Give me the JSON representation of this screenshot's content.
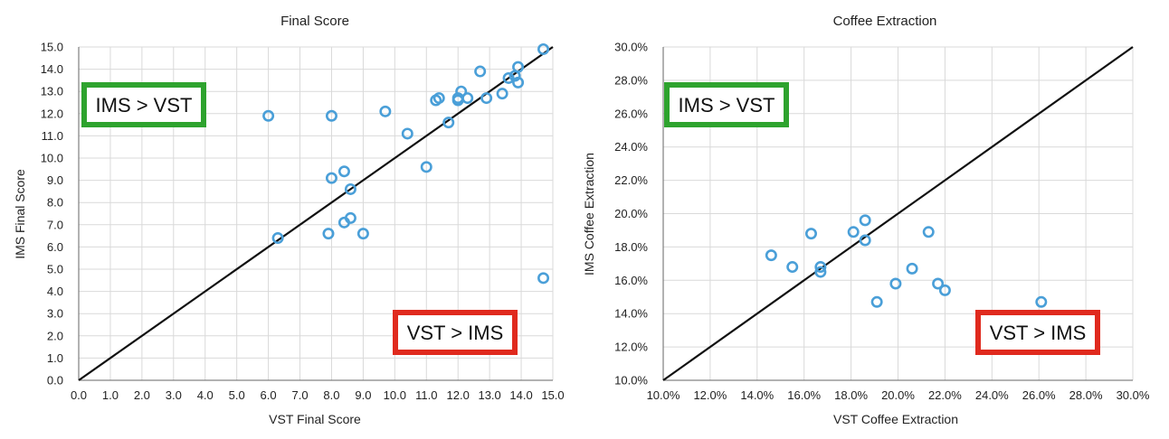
{
  "chart_data": [
    {
      "type": "scatter",
      "title": "Final Score",
      "xlabel": "VST Final Score",
      "ylabel": "IMS Final Score",
      "xlim": [
        0,
        15
      ],
      "ylim": [
        0,
        15
      ],
      "xticks": [
        "0.0",
        "1.0",
        "2.0",
        "3.0",
        "4.0",
        "5.0",
        "6.0",
        "7.0",
        "8.0",
        "9.0",
        "10.0",
        "11.0",
        "12.0",
        "13.0",
        "14.0",
        "15.0"
      ],
      "yticks": [
        "0.0",
        "1.0",
        "2.0",
        "3.0",
        "4.0",
        "5.0",
        "6.0",
        "7.0",
        "8.0",
        "9.0",
        "10.0",
        "11.0",
        "12.0",
        "13.0",
        "14.0",
        "15.0"
      ],
      "grid": true,
      "marker_color": "#4a9fd8",
      "line_color": "#111111",
      "reference_line": [
        [
          0,
          0
        ],
        [
          15,
          15
        ]
      ],
      "series": [
        {
          "points": [
            [
              6.0,
              11.9
            ],
            [
              6.3,
              6.4
            ],
            [
              7.9,
              6.6
            ],
            [
              8.0,
              11.9
            ],
            [
              8.0,
              9.1
            ],
            [
              8.4,
              9.4
            ],
            [
              8.6,
              8.6
            ],
            [
              8.4,
              7.1
            ],
            [
              8.6,
              7.3
            ],
            [
              9.0,
              6.6
            ],
            [
              9.7,
              12.1
            ],
            [
              10.4,
              11.1
            ],
            [
              11.0,
              9.6
            ],
            [
              11.3,
              12.6
            ],
            [
              11.4,
              12.7
            ],
            [
              11.7,
              11.6
            ],
            [
              12.0,
              12.6
            ],
            [
              12.1,
              13.0
            ],
            [
              12.0,
              12.7
            ],
            [
              12.3,
              12.7
            ],
            [
              12.7,
              13.9
            ],
            [
              12.9,
              12.7
            ],
            [
              13.4,
              12.9
            ],
            [
              13.6,
              13.6
            ],
            [
              13.8,
              13.7
            ],
            [
              13.9,
              14.1
            ],
            [
              13.9,
              13.4
            ],
            [
              14.7,
              14.9
            ],
            [
              14.7,
              4.6
            ]
          ]
        }
      ],
      "annotations": {
        "upper": {
          "text": "IMS > VST",
          "color": "#2ea32e"
        },
        "lower": {
          "text": "VST > IMS",
          "color": "#e02a1e"
        }
      }
    },
    {
      "type": "scatter",
      "title": "Coffee Extraction",
      "xlabel": "VST Coffee Extraction",
      "ylabel": "IMS Coffee Extraction",
      "xlim": [
        10,
        30
      ],
      "ylim": [
        10,
        30
      ],
      "xticks": [
        "10.0%",
        "12.0%",
        "14.0%",
        "16.0%",
        "18.0%",
        "20.0%",
        "22.0%",
        "24.0%",
        "26.0%",
        "28.0%",
        "30.0%"
      ],
      "yticks": [
        "10.0%",
        "12.0%",
        "14.0%",
        "16.0%",
        "18.0%",
        "20.0%",
        "22.0%",
        "24.0%",
        "26.0%",
        "28.0%",
        "30.0%"
      ],
      "grid": true,
      "marker_color": "#4a9fd8",
      "line_color": "#111111",
      "reference_line": [
        [
          10,
          10
        ],
        [
          30,
          30
        ]
      ],
      "series": [
        {
          "points": [
            [
              14.6,
              17.5
            ],
            [
              15.5,
              16.8
            ],
            [
              16.3,
              18.8
            ],
            [
              16.7,
              16.8
            ],
            [
              16.7,
              16.5
            ],
            [
              18.1,
              18.9
            ],
            [
              18.6,
              19.6
            ],
            [
              18.6,
              18.4
            ],
            [
              19.1,
              14.7
            ],
            [
              19.9,
              15.8
            ],
            [
              20.6,
              16.7
            ],
            [
              21.3,
              18.9
            ],
            [
              21.7,
              15.8
            ],
            [
              22.0,
              15.4
            ],
            [
              26.1,
              14.7
            ]
          ]
        }
      ],
      "annotations": {
        "upper": {
          "text": "IMS > VST",
          "color": "#2ea32e"
        },
        "lower": {
          "text": "VST > IMS",
          "color": "#e02a1e"
        }
      }
    }
  ]
}
